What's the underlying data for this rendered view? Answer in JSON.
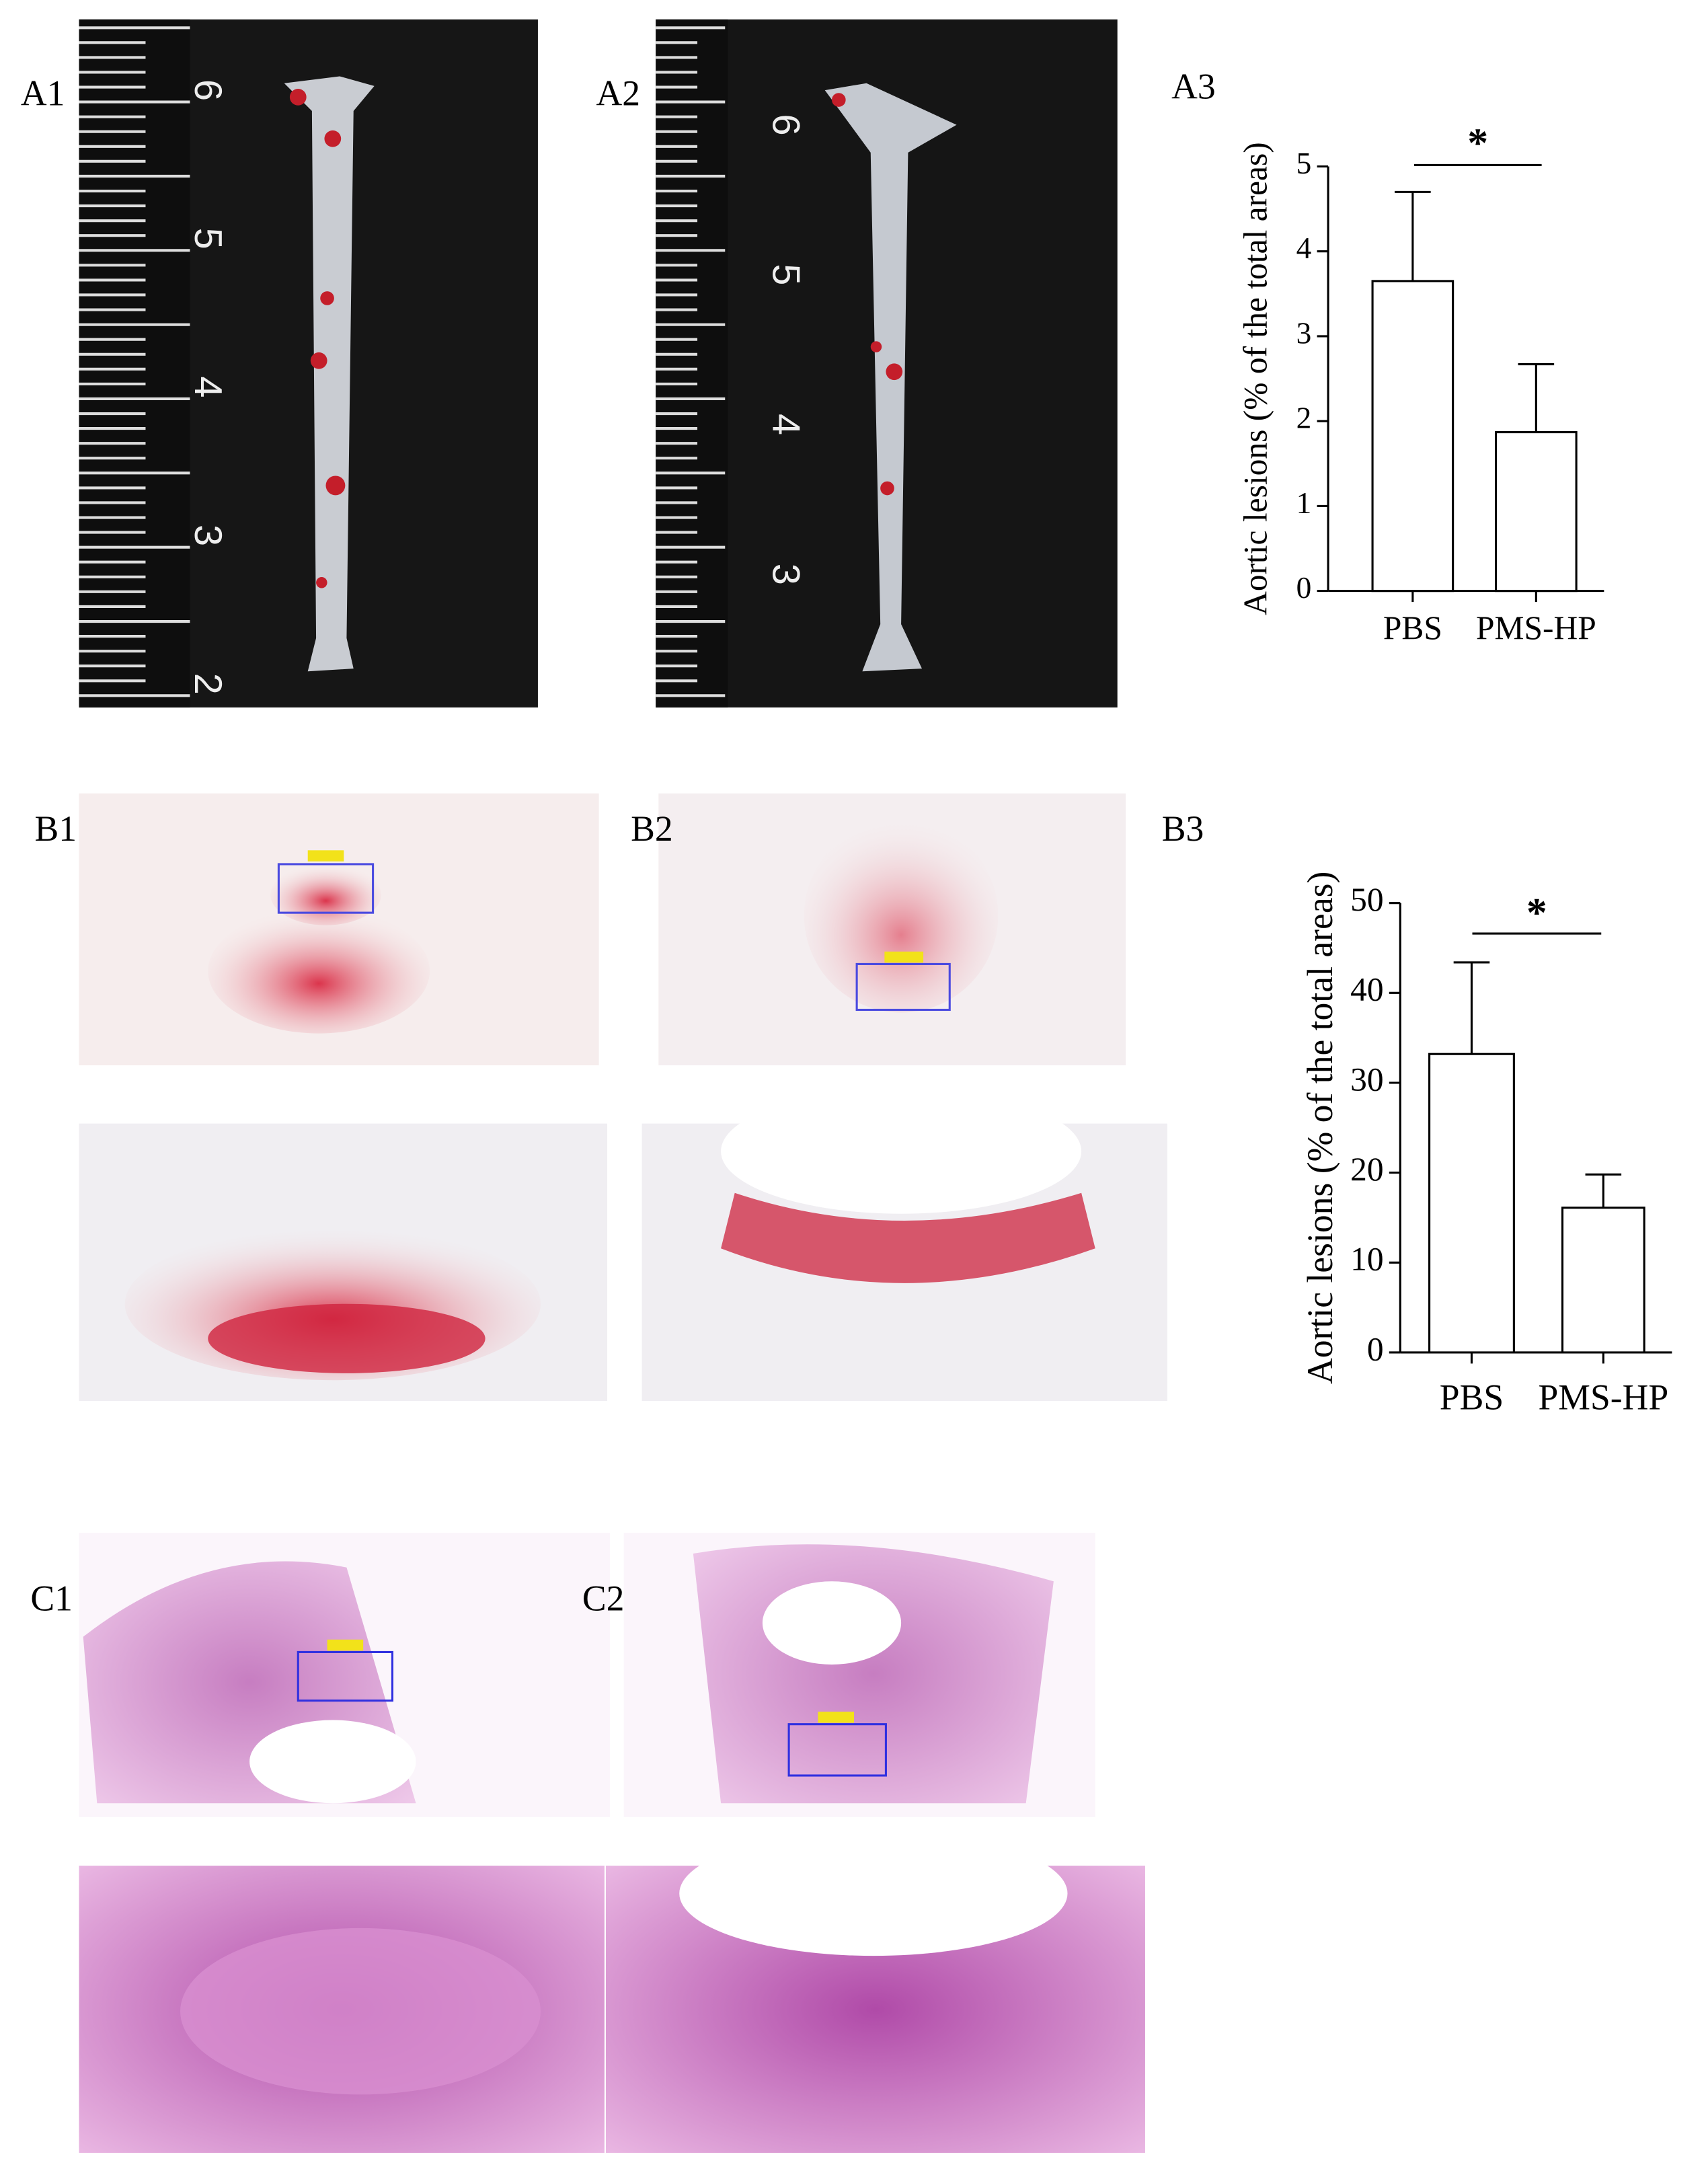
{
  "panel_labels": [
    "A1",
    "A2",
    "A3",
    "B1",
    "B2",
    "B3",
    "C1",
    "C2"
  ],
  "rulers": [
    {
      "labels": [
        "6",
        "5",
        "4",
        "3",
        "2"
      ]
    },
    {
      "labels": [
        "6",
        "5",
        "4",
        "3"
      ]
    }
  ],
  "chart_data": [
    {
      "type": "bar",
      "y_label": "Aortic lesions (% of the total areas)",
      "categories": [
        "PBS",
        "PMS-HP"
      ],
      "values": [
        3.65,
        1.87
      ],
      "errors": [
        1.05,
        0.8
      ],
      "color": "#ffffff",
      "ylim": [
        0,
        5
      ],
      "yticks": [
        0,
        1,
        2,
        3,
        4,
        5
      ],
      "annotation": "*"
    },
    {
      "type": "bar",
      "y_label": "Aortic lesions (% of the total areas)",
      "categories": [
        "PBS",
        "PMS-HP"
      ],
      "values": [
        33.2,
        16.1
      ],
      "errors": [
        10.2,
        3.7
      ],
      "color": "#ffffff",
      "ylim": [
        0,
        50
      ],
      "yticks": [
        0,
        10,
        20,
        30,
        40,
        50
      ],
      "annotation": "*"
    }
  ]
}
